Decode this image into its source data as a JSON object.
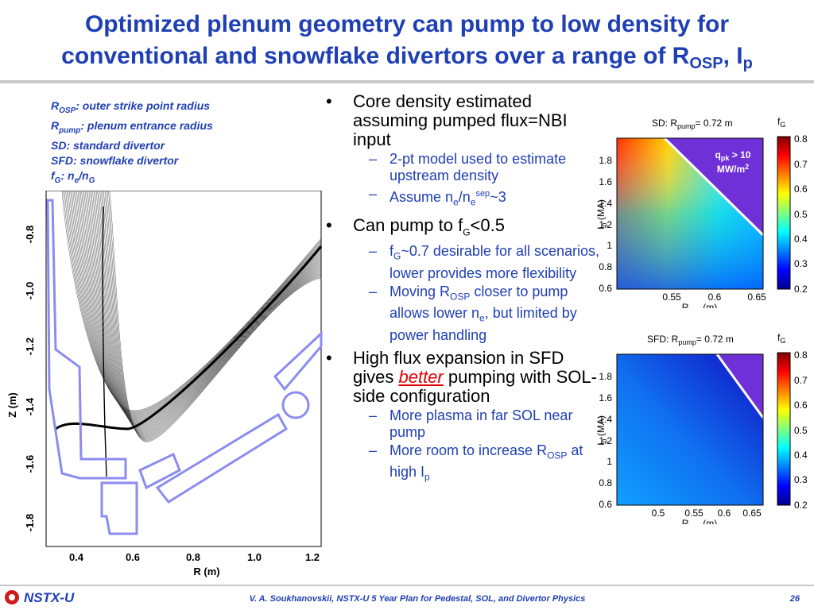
{
  "title": {
    "line1": "Optimized plenum geometry can pump to low density for",
    "line2_pre": "conventional and snowflake divertors over a range of R",
    "line2_sub": "OSP",
    "line2_mid": ", I",
    "line2_sub2": "p"
  },
  "legend": [
    {
      "sym": "R",
      "sub": "OSP",
      "text": ": outer strike point radius"
    },
    {
      "sym": "R",
      "sub": "pump",
      "text": ": plenum entrance radius"
    },
    {
      "sym": "",
      "sub": "",
      "text": "SD: standard divertor"
    },
    {
      "sym": "",
      "sub": "",
      "text": "SFD: snowflake divertor"
    },
    {
      "sym": "f",
      "sub": "G",
      "text": ": n",
      "sub2": "e",
      "text2": "/n",
      "sub3": "G"
    }
  ],
  "bullets": {
    "b1": "Core density estimated assuming pumped flux=NBI input",
    "b1s1": "2-pt model used to estimate upstream density",
    "b1s2_pre": "Assume n",
    "b1s2_sub": "e",
    "b1s2_mid": "/n",
    "b1s2_sub2": "e",
    "b1s2_sup": "sep",
    "b1s2_post": "~3",
    "b2_pre": "Can pump to f",
    "b2_sub": "G",
    "b2_post": "<0.5",
    "b2s1_pre": "f",
    "b2s1_sub": "G",
    "b2s1_post": "~0.7 desirable for all scenarios, lower provides more flexibility",
    "b2s2_pre": "Moving R",
    "b2s2_sub": "OSP",
    "b2s2_mid": " closer to pump allows lower n",
    "b2s2_sub2": "e",
    "b2s2_post": ", but limited by power handling",
    "b3_pre": "High flux expansion in SFD gives ",
    "b3_em": "better",
    "b3_post": " pumping with SOL-side configuration",
    "b3s1": "More plasma in far SOL near pump",
    "b3s2_pre": "More room to increase R",
    "b3s2_sub": "OSP",
    "b3s2_mid": " at high I",
    "b3s2_sub2": "p"
  },
  "plasma_plot": {
    "xlabel": "R (m)",
    "ylabel": "Z (m)",
    "xticks": [
      "0.4",
      "0.6",
      "0.8",
      "1.0",
      "1.2"
    ],
    "yticks": [
      "-0.8",
      "-1.0",
      "-1.2",
      "-1.4",
      "-1.6",
      "-1.8"
    ]
  },
  "heatmaps": [
    {
      "title_pre": "SD: R",
      "title_sub": "pump",
      "title_post": "= 0.72 m",
      "cb_label": "f",
      "cb_sub": "G",
      "cb_ticks": [
        "0.8",
        "0.7",
        "0.6",
        "0.5",
        "0.4",
        "0.3",
        "0.2"
      ],
      "yticks": [
        "1.8",
        "1.6",
        "1.4",
        "1.2",
        "1",
        "0.8",
        "0.6"
      ],
      "xticks": [
        "0.55",
        "0.6",
        "0.65"
      ],
      "xlabel_pre": "R",
      "xlabel_sub": "osp",
      "xlabel_post": " (m)",
      "ylabel_pre": "I",
      "ylabel_sub": "p",
      "ylabel_post": " (MA)",
      "annot_pre": "q",
      "annot_sub": "pk",
      "annot_post": " > 10",
      "annot_line2": "MW/m",
      "annot_sup": "2"
    },
    {
      "title_pre": "SFD: R",
      "title_sub": "pump",
      "title_post": "= 0.72 m",
      "cb_label": "f",
      "cb_sub": "G",
      "cb_ticks": [
        "0.8",
        "0.7",
        "0.6",
        "0.5",
        "0.4",
        "0.3",
        "0.2"
      ],
      "yticks": [
        "1.8",
        "1.6",
        "1.4",
        "1.2",
        "1",
        "0.8",
        "0.6"
      ],
      "xticks": [
        "0.5",
        "0.55",
        "0.6",
        "0.65"
      ],
      "xlabel_pre": "R",
      "xlabel_sub": "osp",
      "xlabel_post": " (m)",
      "ylabel_pre": "I",
      "ylabel_sub": "p",
      "ylabel_post": " (MA)"
    }
  ],
  "footer": {
    "logo": "NSTX-U",
    "text": "V. A. Soukhanovskii, NSTX-U 5 Year Plan for Pedestal, SOL, and Divertor Physics",
    "page": "26"
  },
  "colors": {
    "title_blue": "#1f3fb4",
    "accent_red": "#e00000",
    "wall": "#8c8cf0"
  }
}
